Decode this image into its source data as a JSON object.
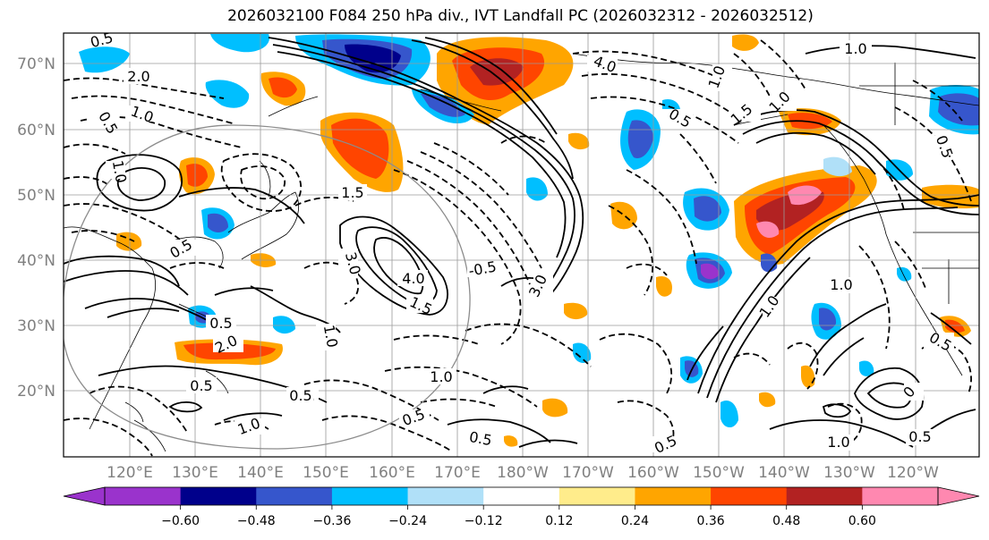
{
  "title": "2026032100 F084 250 hPa div., IVT Landfall PC (2026032312 - 2026032512)",
  "map": {
    "lat_ticks": [
      "70°N",
      "60°N",
      "50°N",
      "40°N",
      "30°N",
      "20°N"
    ],
    "lon_ticks": [
      "120°E",
      "130°E",
      "140°E",
      "150°E",
      "160°E",
      "170°E",
      "180°W",
      "170°W",
      "160°W",
      "150°W",
      "140°W",
      "130°W",
      "120°W"
    ],
    "tick_color": "#808080",
    "contour_labels": [
      {
        "text": "0.5"
      },
      {
        "text": "2.0"
      },
      {
        "text": "1.0"
      },
      {
        "text": "0.5"
      },
      {
        "text": "1.0"
      },
      {
        "text": "1.5"
      },
      {
        "text": "0.5"
      },
      {
        "text": "3.0"
      },
      {
        "text": "4.0"
      },
      {
        "text": "1.5"
      },
      {
        "text": "-0.5"
      },
      {
        "text": "0.5"
      },
      {
        "text": "2.0"
      },
      {
        "text": "1.0"
      },
      {
        "text": "0.5"
      },
      {
        "text": "1.0"
      },
      {
        "text": "0.5"
      },
      {
        "text": "1.0"
      },
      {
        "text": "0.5"
      },
      {
        "text": "4.0"
      },
      {
        "text": "1.0"
      },
      {
        "text": "0.5"
      },
      {
        "text": "1.5"
      },
      {
        "text": "1.0"
      },
      {
        "text": "1.0"
      },
      {
        "text": "0.5"
      },
      {
        "text": "1.0"
      },
      {
        "text": "0.5"
      },
      {
        "text": "0"
      },
      {
        "text": "1.0"
      },
      {
        "text": "0.5"
      },
      {
        "text": "0.5"
      },
      {
        "text": "0.5"
      },
      {
        "text": "1.0"
      },
      {
        "text": "3.0"
      },
      {
        "text": "0.5"
      }
    ]
  },
  "colorbar": {
    "bounds": [
      -0.72,
      -0.6,
      -0.48,
      -0.36,
      -0.24,
      -0.12,
      0.12,
      0.24,
      0.36,
      0.48,
      0.6,
      0.72
    ],
    "colors": [
      "#9a33cc",
      "#00008b",
      "#3656cc",
      "#00bfff",
      "#b0e0f8",
      "#ffffff",
      "#ffec8b",
      "#ffa500",
      "#ff4500",
      "#b22222",
      "#ff88b0"
    ],
    "extend_min_color": "#9a33cc",
    "extend_max_color": "#ff88b0",
    "tick_labels": [
      "−0.60",
      "−0.48",
      "−0.36",
      "−0.24",
      "−0.12",
      "0.12",
      "0.24",
      "0.36",
      "0.48",
      "0.60"
    ]
  }
}
